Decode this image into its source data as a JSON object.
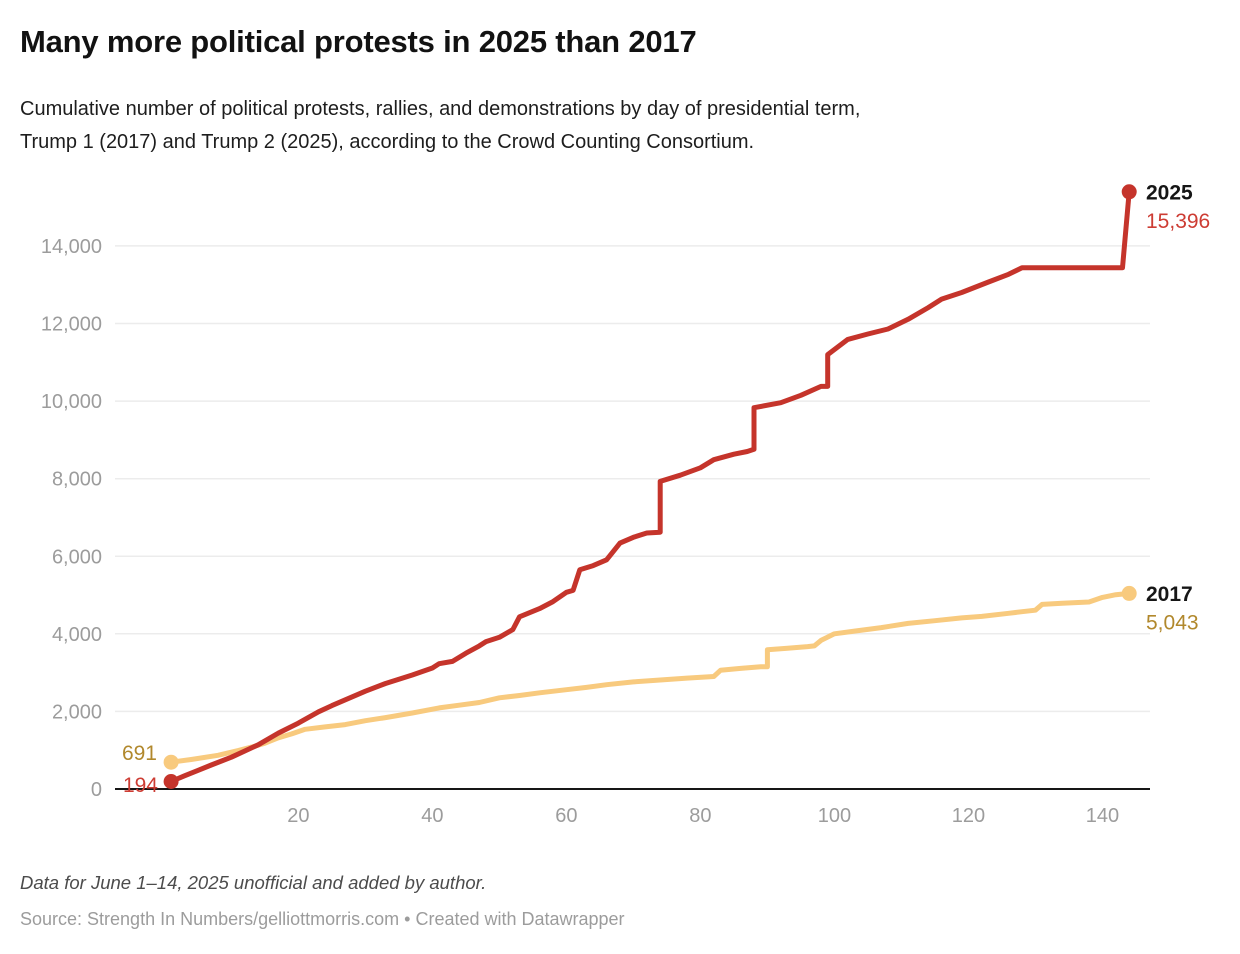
{
  "header": {
    "title": "Many more political protests in 2025 than 2017",
    "subtitle_line1": "Cumulative number of political protests, rallies, and demonstrations by day of presidential term,",
    "subtitle_line2": "Trump 1 (2017) and Trump 2 (2025), according to the Crowd Counting Consortium."
  },
  "footer": {
    "note": "Data for June 1–14, 2025 unofficial and added by author.",
    "source": "Source: Strength In Numbers/gelliottmorris.com • Created with Datawrapper"
  },
  "colors": {
    "red_line": "#c5342b",
    "red_value_text": "#cd3c33",
    "gold_line": "#f8ca7e",
    "gold_value_text": "#b1882c",
    "year_label": "#161616",
    "tick_text": "#9c9c9c",
    "gridline": "#ececec",
    "axis_line": "#161616"
  },
  "chart_data": {
    "type": "line",
    "title": "Many more political protests in 2025 than 2017",
    "xlabel": "",
    "ylabel": "",
    "x_ticks": [
      20,
      40,
      60,
      80,
      100,
      120,
      140
    ],
    "y_ticks": [
      0,
      2000,
      4000,
      6000,
      8000,
      10000,
      12000,
      14000
    ],
    "xlim": [
      0,
      147
    ],
    "ylim": [
      0,
      16010
    ],
    "grid": true,
    "legend_position": "end-of-line-labels",
    "series": [
      {
        "name": "2025",
        "color": "#c5342b",
        "label_color": "#cd3c33",
        "end_label": "2025",
        "end_value_label": "15,396",
        "start_value_label": "194",
        "points": [
          [
            1,
            194
          ],
          [
            3,
            340
          ],
          [
            5,
            480
          ],
          [
            7,
            620
          ],
          [
            10,
            820
          ],
          [
            12,
            980
          ],
          [
            14,
            1140
          ],
          [
            17,
            1440
          ],
          [
            20,
            1700
          ],
          [
            23,
            1990
          ],
          [
            25,
            2150
          ],
          [
            27,
            2300
          ],
          [
            30,
            2520
          ],
          [
            33,
            2720
          ],
          [
            37,
            2940
          ],
          [
            40,
            3120
          ],
          [
            41,
            3230
          ],
          [
            43,
            3290
          ],
          [
            45,
            3500
          ],
          [
            47,
            3690
          ],
          [
            48,
            3800
          ],
          [
            50,
            3910
          ],
          [
            52,
            4110
          ],
          [
            53,
            4440
          ],
          [
            56,
            4650
          ],
          [
            58,
            4830
          ],
          [
            60,
            5070
          ],
          [
            61,
            5120
          ],
          [
            62,
            5650
          ],
          [
            64,
            5760
          ],
          [
            66,
            5910
          ],
          [
            68,
            6340
          ],
          [
            70,
            6490
          ],
          [
            72,
            6600
          ],
          [
            74,
            6620
          ],
          [
            74,
            7930
          ],
          [
            77,
            8090
          ],
          [
            80,
            8280
          ],
          [
            82,
            8490
          ],
          [
            85,
            8630
          ],
          [
            87,
            8700
          ],
          [
            88,
            8760
          ],
          [
            88,
            9830
          ],
          [
            92,
            9960
          ],
          [
            95,
            10150
          ],
          [
            98,
            10380
          ],
          [
            99,
            10380
          ],
          [
            99,
            11200
          ],
          [
            102,
            11590
          ],
          [
            105,
            11730
          ],
          [
            108,
            11860
          ],
          [
            111,
            12110
          ],
          [
            114,
            12410
          ],
          [
            116,
            12630
          ],
          [
            119,
            12800
          ],
          [
            123,
            13070
          ],
          [
            126,
            13270
          ],
          [
            128,
            13440
          ],
          [
            143,
            13440
          ],
          [
            144,
            15396
          ]
        ]
      },
      {
        "name": "2017",
        "color": "#f8ca7e",
        "label_color": "#b1882c",
        "end_label": "2017",
        "end_value_label": "5,043",
        "start_value_label": "691",
        "points": [
          [
            1,
            691
          ],
          [
            4,
            760
          ],
          [
            8,
            870
          ],
          [
            11,
            990
          ],
          [
            13,
            1080
          ],
          [
            15,
            1180
          ],
          [
            17,
            1320
          ],
          [
            19,
            1420
          ],
          [
            21,
            1540
          ],
          [
            24,
            1600
          ],
          [
            27,
            1660
          ],
          [
            30,
            1760
          ],
          [
            33,
            1840
          ],
          [
            37,
            1960
          ],
          [
            41,
            2090
          ],
          [
            44,
            2160
          ],
          [
            47,
            2230
          ],
          [
            50,
            2350
          ],
          [
            53,
            2410
          ],
          [
            56,
            2480
          ],
          [
            60,
            2560
          ],
          [
            63,
            2620
          ],
          [
            66,
            2690
          ],
          [
            70,
            2760
          ],
          [
            74,
            2810
          ],
          [
            78,
            2860
          ],
          [
            82,
            2900
          ],
          [
            83,
            3060
          ],
          [
            86,
            3110
          ],
          [
            89,
            3150
          ],
          [
            90,
            3150
          ],
          [
            90,
            3590
          ],
          [
            93,
            3630
          ],
          [
            96,
            3670
          ],
          [
            97,
            3690
          ],
          [
            98,
            3830
          ],
          [
            100,
            4000
          ],
          [
            103,
            4070
          ],
          [
            107,
            4160
          ],
          [
            111,
            4270
          ],
          [
            115,
            4340
          ],
          [
            119,
            4410
          ],
          [
            122,
            4450
          ],
          [
            126,
            4530
          ],
          [
            128,
            4570
          ],
          [
            130,
            4610
          ],
          [
            131,
            4760
          ],
          [
            134,
            4790
          ],
          [
            138,
            4820
          ],
          [
            140,
            4940
          ],
          [
            142,
            5010
          ],
          [
            144,
            5043
          ]
        ]
      }
    ]
  }
}
